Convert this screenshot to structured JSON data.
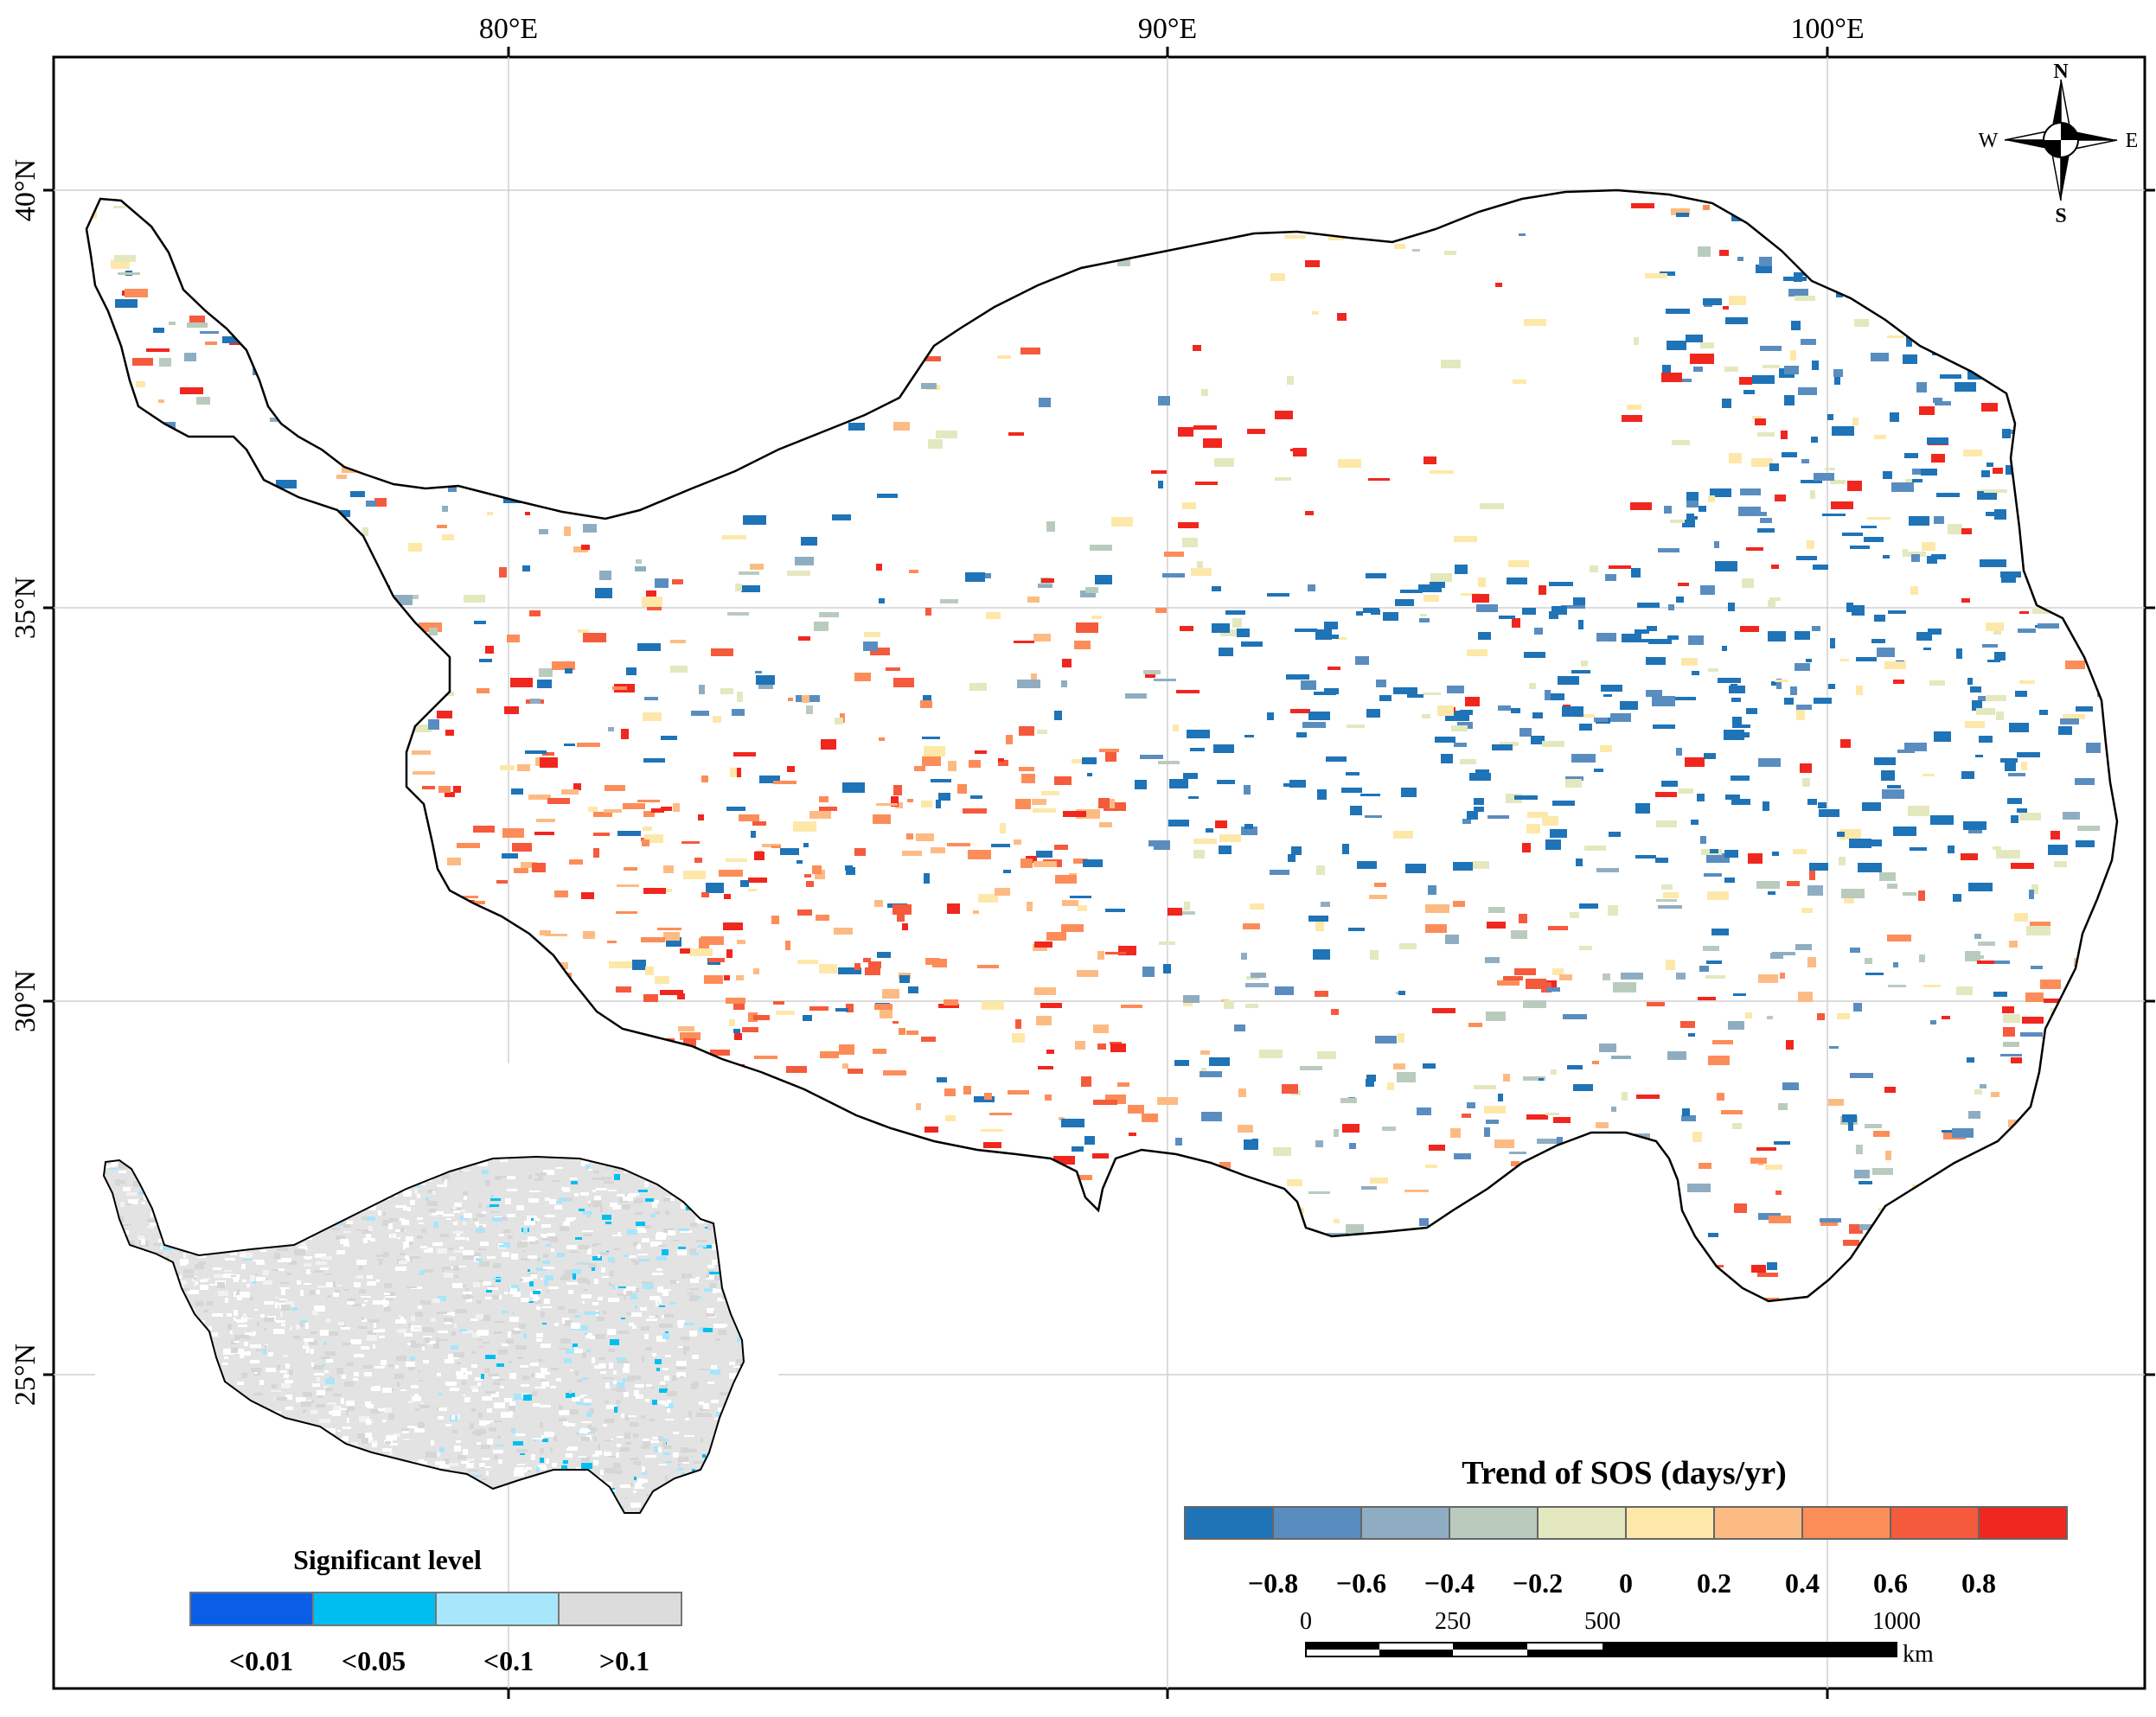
{
  "axes": {
    "lon_labels": [
      "80°E",
      "90°E",
      "100°E"
    ],
    "lat_labels": [
      "40°N",
      "35°N",
      "30°N",
      "25°N"
    ]
  },
  "compass": {
    "n": "N",
    "s": "S",
    "e": "E",
    "w": "W"
  },
  "trend_legend": {
    "title": "Trend of SOS (days/yr)",
    "tick_labels": [
      "−0.8",
      "−0.6",
      "−0.4",
      "−0.2",
      "0",
      "0.2",
      "0.4",
      "0.6",
      "0.8"
    ],
    "colors": [
      "#1f73b7",
      "#5a8dbf",
      "#8fadc2",
      "#b9cbbd",
      "#e3e8bf",
      "#fde8a9",
      "#fdbb84",
      "#fc8d59",
      "#f55a3c",
      "#f0271f"
    ]
  },
  "scale_bar": {
    "labels": [
      "0",
      "250",
      "500",
      "1000"
    ],
    "unit": "km"
  },
  "significance_legend": {
    "title": "Significant level",
    "labels": [
      "<0.01",
      "<0.05",
      "<0.1",
      ">0.1"
    ],
    "colors": [
      "#0a5de6",
      "#00bff0",
      "#a8e6fb",
      "#dcdcdc"
    ]
  }
}
